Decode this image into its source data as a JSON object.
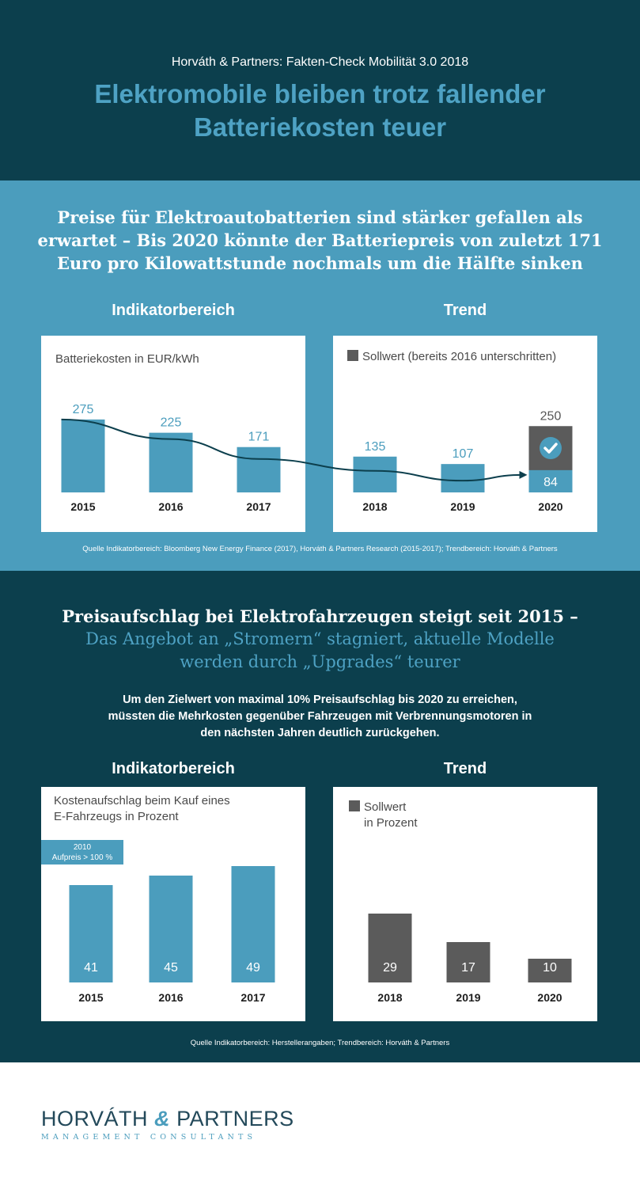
{
  "header": {
    "eyebrow": "Horváth & Partners: Fakten-Check Mobilität 3.0 2018",
    "title_line1": "Elektromobile bleiben trotz fallender",
    "title_line2": "Batteriekosten teuer"
  },
  "battery": {
    "headline_line1": "Preise für Elektroautobatterien sind stärker gefallen als",
    "headline_line2": "erwartet – Bis 2020 könnte der Batteriepreis von zuletzt 171",
    "headline_line3": "Euro pro Kilowattstunde nochmals um die Hälfte sinken",
    "indicator_heading": "Indikatorbereich",
    "trend_heading": "Trend",
    "indicator_label": "Batteriekosten in EUR/kWh",
    "trend_legend": "Sollwert (bereits 2016 unterschritten)",
    "source": "Quelle Indikatorbereich: Bloomberg New Energy Finance (2017), Horváth & Partners Research (2015-2017); Trendbereich: Horváth & Partners"
  },
  "price": {
    "headline_line1": "Preisaufschlag bei Elektrofahrzeugen steigt seit 2015 –",
    "subline_line1": "Das Angebot an „Stromern“ stagniert, aktuelle Modelle",
    "subline_line2": "werden durch „Upgrades“ teurer",
    "intro_line1": "Um den Zielwert von maximal 10% Preisaufschlag bis 2020 zu erreichen,",
    "intro_line2": "müssten die Mehrkosten gegenüber Fahrzeugen mit Verbrennungsmotoren in",
    "intro_line3": "den nächsten Jahren deutlich zurückgehen.",
    "indicator_heading": "Indikatorbereich",
    "trend_heading": "Trend",
    "indicator_label_line1": "Kostenaufschlag beim Kauf eines",
    "indicator_label_line2": "E-Fahrzeugs in Prozent",
    "badge_line1": "2010",
    "badge_line2": "Aufpreis > 100 %",
    "trend_legend_line1": "Sollwert",
    "trend_legend_line2": "in Prozent",
    "source": "Quelle Indikatorbereich: Herstellerangaben; Trendbereich: Horváth & Partners"
  },
  "logo": {
    "name_part1": "HORVÁTH",
    "name_amp": "&",
    "name_part2": "PARTNERS",
    "tagline": "MANAGEMENT CONSULTANTS"
  },
  "colors": {
    "dark_teal": "#0c3f4d",
    "mid_blue": "#4b9dbd",
    "bar_blue": "#4b9dbd",
    "target_gray": "#5b5b5b",
    "label_blue": "#4b9dbd",
    "axis_text": "#1d1d1d"
  },
  "icons": {
    "target_check": "check-circle-icon"
  },
  "chart_data": [
    {
      "id": "battery-indicator",
      "type": "bar",
      "title": "Batteriekosten in EUR/kWh",
      "categories": [
        "2015",
        "2016",
        "2017"
      ],
      "values": [
        275,
        225,
        171
      ],
      "ylim": [
        0,
        300
      ]
    },
    {
      "id": "battery-trend",
      "type": "bar",
      "categories": [
        "2018",
        "2019",
        "2020"
      ],
      "values": [
        135,
        107,
        84
      ],
      "target": {
        "category": "2020",
        "value": 250,
        "legend": "Sollwert (bereits 2016 unterschritten)"
      },
      "trend_line": true,
      "ylim": [
        0,
        300
      ]
    },
    {
      "id": "price-indicator",
      "type": "bar",
      "title": "Kostenaufschlag beim Kauf eines E-Fahrzeugs in Prozent",
      "categories": [
        "2015",
        "2016",
        "2017"
      ],
      "values": [
        41,
        45,
        49
      ],
      "annotation": "2010 Aufpreis > 100 %",
      "ylim": [
        0,
        56
      ]
    },
    {
      "id": "price-trend",
      "type": "bar",
      "categories": [
        "2018",
        "2019",
        "2020"
      ],
      "values": [
        29,
        17,
        10
      ],
      "legend": "Sollwert in Prozent",
      "ylim": [
        0,
        56
      ]
    }
  ]
}
